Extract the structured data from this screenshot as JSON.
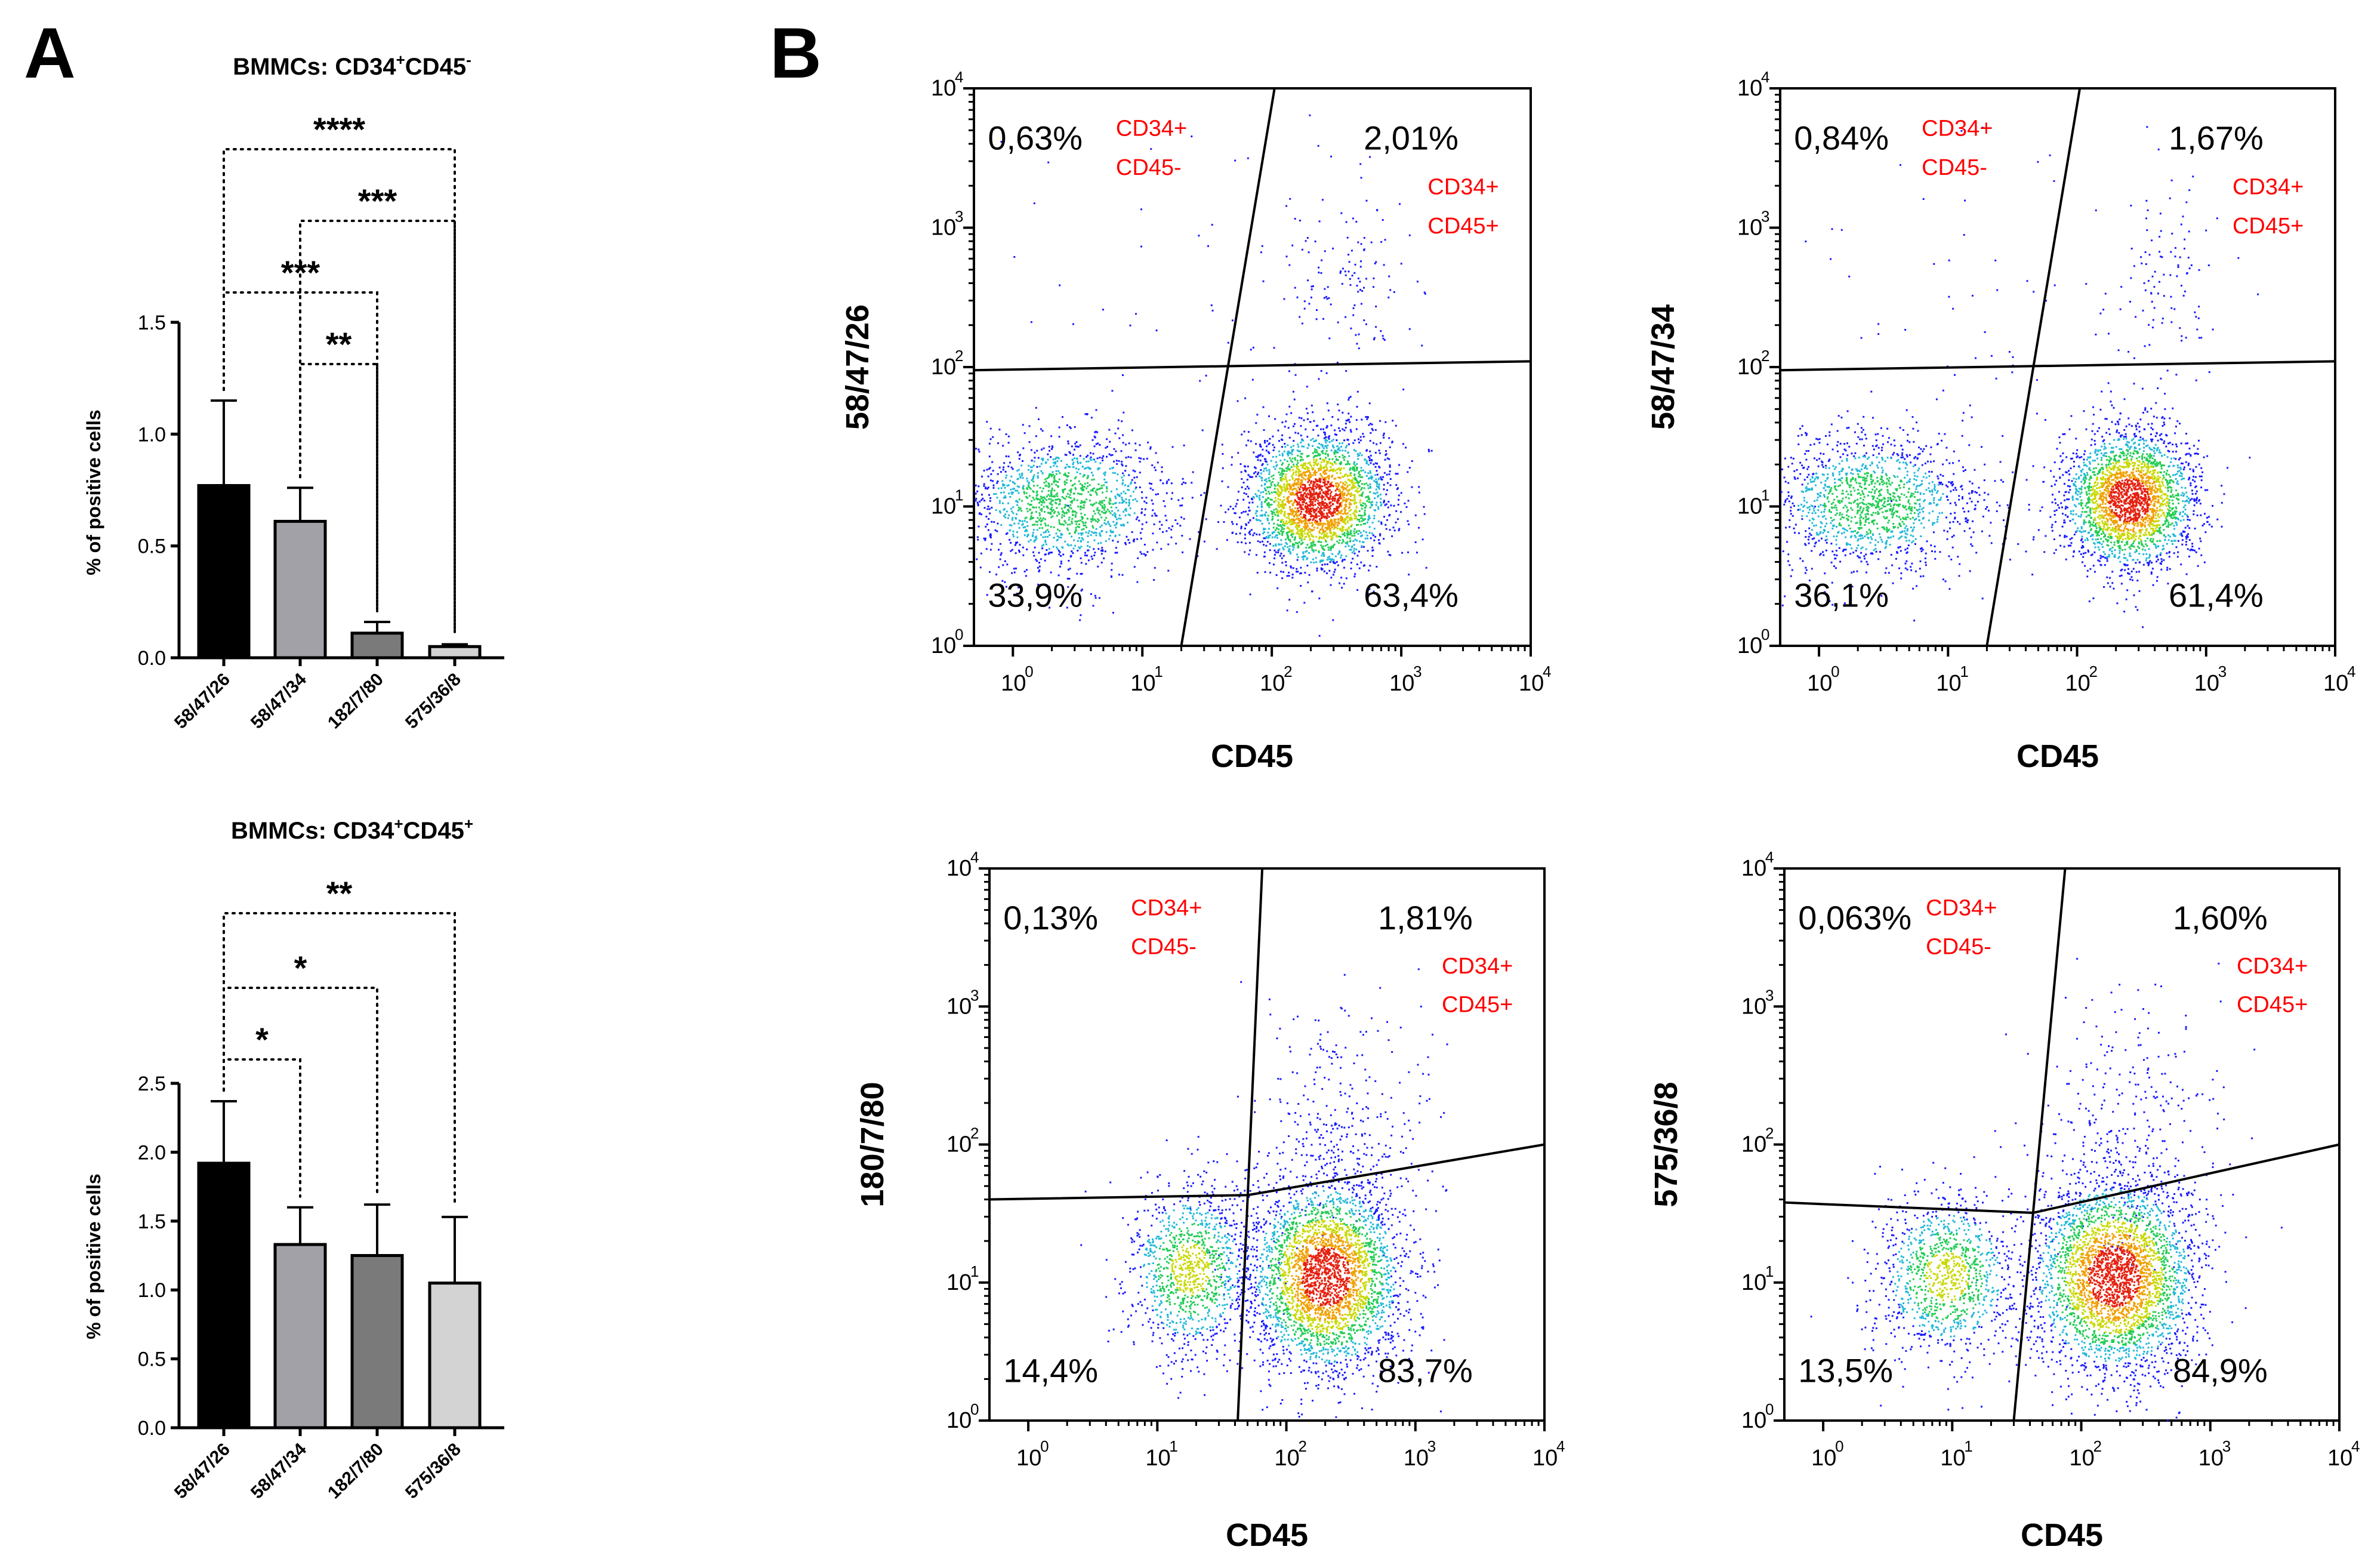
{
  "figure": {
    "panel_a_label": "A",
    "panel_b_label": "B"
  },
  "chart_data": [
    {
      "type": "bar",
      "id": "bar1",
      "title_prefix": "BMMCs: CD34",
      "title_sup1": "+",
      "title_mid": "CD45",
      "title_sup2": "-",
      "ylabel": "% of positive cells",
      "xlabel": "",
      "categories": [
        "58/47/26",
        "58/47/34",
        "182/7/80",
        "575/36/8"
      ],
      "values": [
        0.77,
        0.61,
        0.11,
        0.05
      ],
      "errors": [
        0.38,
        0.15,
        0.05,
        0.01
      ],
      "colors": [
        "#000000",
        "#a1a1a7",
        "#7a7a7a",
        "#d3d3d3"
      ],
      "ylim": [
        0,
        1.5
      ],
      "yticks": [
        0.0,
        0.5,
        1.0,
        1.5
      ],
      "ytick_labels": [
        "0.0",
        "0.5",
        "1.0",
        "1.5"
      ],
      "significance": [
        {
          "from": 0,
          "to": 3,
          "label": "****"
        },
        {
          "from": 1,
          "to": 3,
          "label": "***"
        },
        {
          "from": 0,
          "to": 2,
          "label": "***"
        },
        {
          "from": 1,
          "to": 2,
          "label": "**"
        }
      ]
    },
    {
      "type": "bar",
      "id": "bar2",
      "title_prefix": "BMMCs: CD34",
      "title_sup1": "+",
      "title_mid": "CD45",
      "title_sup2": "+",
      "ylabel": "% of positive cells",
      "xlabel": "",
      "categories": [
        "58/47/26",
        "58/47/34",
        "182/7/80",
        "575/36/8"
      ],
      "values": [
        1.92,
        1.33,
        1.25,
        1.05
      ],
      "errors": [
        0.45,
        0.27,
        0.37,
        0.48
      ],
      "colors": [
        "#000000",
        "#a1a1a7",
        "#7a7a7a",
        "#d3d3d3"
      ],
      "ylim": [
        0,
        2.5
      ],
      "yticks": [
        0.0,
        0.5,
        1.0,
        1.5,
        2.0,
        2.5
      ],
      "ytick_labels": [
        "0.0",
        "0.5",
        "1.0",
        "1.5",
        "2.0",
        "2.5"
      ],
      "significance": [
        {
          "from": 0,
          "to": 3,
          "label": "**"
        },
        {
          "from": 0,
          "to": 2,
          "label": "*"
        },
        {
          "from": 0,
          "to": 1,
          "label": "*"
        }
      ]
    },
    {
      "type": "scatter",
      "id": "facs1",
      "xlabel": "CD45",
      "ylabel": "58/47/26",
      "xlim": [
        0.5,
        10000
      ],
      "ylim": [
        1,
        10000
      ],
      "log_scale": true,
      "tick_base": "10",
      "tick_exponents": [
        "0",
        "1",
        "2",
        "3",
        "4"
      ],
      "quadrants": {
        "ul": "0,63%",
        "ur": "2,01%",
        "ll": "33,9%",
        "lr": "63,4%"
      },
      "quadrant_labels": {
        "ul_1": "CD34+",
        "ul_2": "CD45-",
        "ur_1": "CD34+",
        "ur_2": "CD45+"
      },
      "gates": {
        "h_left_y": 95,
        "h_right_y": 110,
        "v_bottom_x": 20,
        "v_top_x": 105
      },
      "populations": [
        {
          "cx": 0.4,
          "cy": 1.03,
          "sx": 0.42,
          "sy": 0.25,
          "n": 1400,
          "heat": 0.5
        },
        {
          "cx": 2.35,
          "cy": 1.05,
          "sx": 0.28,
          "sy": 0.25,
          "n": 2600,
          "heat": 1.0
        },
        {
          "cx": 2.55,
          "cy": 2.6,
          "sx": 0.25,
          "sy": 0.35,
          "n": 140,
          "heat": 0
        },
        {
          "cx": 1.2,
          "cy": 2.4,
          "sx": 0.8,
          "sy": 0.8,
          "n": 60,
          "heat": 0
        }
      ]
    },
    {
      "type": "scatter",
      "id": "facs2",
      "xlabel": "CD45",
      "ylabel": "58/47/34",
      "xlim": [
        0.5,
        10000
      ],
      "ylim": [
        1,
        10000
      ],
      "log_scale": true,
      "tick_base": "10",
      "tick_exponents": [
        "0",
        "1",
        "2",
        "3",
        "4"
      ],
      "quadrants": {
        "ul": "0,84%",
        "ur": "1,67%",
        "ll": "36,1%",
        "lr": "61,4%"
      },
      "quadrant_labels": {
        "ul_1": "CD34+",
        "ul_2": "CD45-",
        "ur_1": "CD34+",
        "ur_2": "CD45+"
      },
      "gates": {
        "h_left_y": 95,
        "h_right_y": 110,
        "v_bottom_x": 20,
        "v_top_x": 105
      },
      "populations": [
        {
          "cx": 0.4,
          "cy": 1.03,
          "sx": 0.42,
          "sy": 0.25,
          "n": 1400,
          "heat": 0.5
        },
        {
          "cx": 2.4,
          "cy": 1.05,
          "sx": 0.26,
          "sy": 0.25,
          "n": 2500,
          "heat": 1.0
        },
        {
          "cx": 2.7,
          "cy": 2.6,
          "sx": 0.22,
          "sy": 0.35,
          "n": 110,
          "heat": 0
        },
        {
          "cx": 1.2,
          "cy": 2.4,
          "sx": 0.8,
          "sy": 0.8,
          "n": 60,
          "heat": 0
        }
      ]
    },
    {
      "type": "scatter",
      "id": "facs3",
      "xlabel": "CD45",
      "ylabel": "180/7/80",
      "xlim": [
        0.5,
        10000
      ],
      "ylim": [
        1,
        10000
      ],
      "log_scale": true,
      "tick_base": "10",
      "tick_exponents": [
        "0",
        "1",
        "2",
        "3",
        "4"
      ],
      "quadrants": {
        "ul": "0,13%",
        "ur": "1,81%",
        "ll": "14,4%",
        "lr": "83,7%"
      },
      "quadrant_labels": {
        "ul_1": "CD34+",
        "ul_2": "CD45-",
        "ur_1": "CD34+",
        "ur_2": "CD45+"
      },
      "gates": {
        "h_left_y": 40,
        "h_mid_y": 43,
        "h_right_y": 100,
        "v_bottom_x": 42,
        "v_top_x": 65
      },
      "populations": [
        {
          "cx": 1.25,
          "cy": 1.1,
          "sx": 0.25,
          "sy": 0.32,
          "n": 1100,
          "heat": 0.6
        },
        {
          "cx": 2.3,
          "cy": 1.05,
          "sx": 0.3,
          "sy": 0.35,
          "n": 3200,
          "heat": 1.0
        },
        {
          "cx": 2.4,
          "cy": 2.1,
          "sx": 0.35,
          "sy": 0.45,
          "n": 300,
          "heat": 0
        }
      ]
    },
    {
      "type": "scatter",
      "id": "facs4",
      "xlabel": "CD45",
      "ylabel": "575/36/8",
      "xlim": [
        0.5,
        10000
      ],
      "ylim": [
        1,
        10000
      ],
      "log_scale": true,
      "tick_base": "10",
      "tick_exponents": [
        "0",
        "1",
        "2",
        "3",
        "4"
      ],
      "quadrants": {
        "ul": "0,063%",
        "ur": "1,60%",
        "ll": "13,5%",
        "lr": "84,9%"
      },
      "quadrant_labels": {
        "ul_1": "CD34+",
        "ul_2": "CD45-",
        "ur_1": "CD34+",
        "ur_2": "CD45+"
      },
      "gates": {
        "h_left_y": 38,
        "h_mid_y": 32,
        "h_right_y": 100,
        "v_bottom_x": 30,
        "v_top_x": 75
      },
      "populations": [
        {
          "cx": 0.95,
          "cy": 1.05,
          "sx": 0.28,
          "sy": 0.3,
          "n": 1100,
          "heat": 0.6
        },
        {
          "cx": 2.25,
          "cy": 1.05,
          "sx": 0.32,
          "sy": 0.35,
          "n": 3200,
          "heat": 1.0
        },
        {
          "cx": 2.4,
          "cy": 2.1,
          "sx": 0.35,
          "sy": 0.45,
          "n": 300,
          "heat": 0
        }
      ]
    }
  ]
}
